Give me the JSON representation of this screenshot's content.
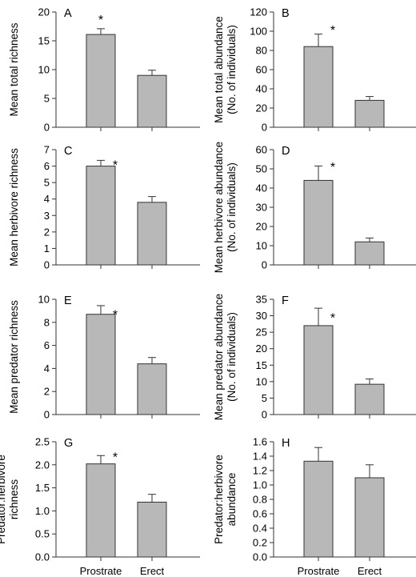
{
  "bar_color": "#b8b8b8",
  "edge_color": "#333333",
  "chart_data": [
    {
      "type": "bar",
      "panel": "A",
      "categories": [
        "Prostrate",
        "Erect"
      ],
      "values": [
        16.1,
        9.0
      ],
      "errors": [
        1.0,
        0.9
      ],
      "ylabel": [
        "Mean total richness"
      ],
      "ylim": [
        0,
        20
      ],
      "yticks": [
        0,
        5,
        10,
        15,
        20
      ],
      "significance": "*",
      "star_on": 0,
      "star_above_value": 19.3,
      "show_categories": false
    },
    {
      "type": "bar",
      "panel": "B",
      "categories": [
        "Prostrate",
        "Erect"
      ],
      "values": [
        84,
        28
      ],
      "errors": [
        13,
        4
      ],
      "ylabel": [
        "Mean total abundance",
        "(No. of individuals)"
      ],
      "ylim": [
        0,
        120
      ],
      "yticks": [
        0,
        20,
        40,
        60,
        80,
        100,
        120
      ],
      "significance": "*",
      "star_on": 1,
      "star_above_value": 105,
      "show_categories": false
    },
    {
      "type": "bar",
      "panel": "C",
      "categories": [
        "Prostrate",
        "Erect"
      ],
      "values": [
        6.0,
        3.8
      ],
      "errors": [
        0.35,
        0.35
      ],
      "ylabel": [
        "Mean herbivore richness"
      ],
      "ylim": [
        0,
        7
      ],
      "yticks": [
        0,
        1,
        2,
        3,
        4,
        5,
        6,
        7
      ],
      "significance": "*",
      "star_on": 1,
      "star_above_value": 6.3,
      "show_categories": false
    },
    {
      "type": "bar",
      "panel": "D",
      "categories": [
        "Prostrate",
        "Erect"
      ],
      "values": [
        44,
        12
      ],
      "errors": [
        7.5,
        2
      ],
      "ylabel": [
        "Mean herbivore abundance",
        "(No. of individuals)"
      ],
      "ylim": [
        0,
        60
      ],
      "yticks": [
        0,
        10,
        20,
        30,
        40,
        50,
        60
      ],
      "significance": "*",
      "star_on": 1,
      "star_above_value": 53,
      "show_categories": false
    },
    {
      "type": "bar",
      "panel": "E",
      "categories": [
        "Prostrate",
        "Erect"
      ],
      "values": [
        8.7,
        4.4
      ],
      "errors": [
        0.75,
        0.55
      ],
      "ylabel": [
        "Mean predator richness"
      ],
      "ylim": [
        0,
        10
      ],
      "yticks": [
        0,
        2,
        4,
        6,
        8,
        10
      ],
      "significance": "*",
      "star_on": 1,
      "star_above_value": 9.0,
      "show_categories": false
    },
    {
      "type": "bar",
      "panel": "F",
      "categories": [
        "Prostrate",
        "Erect"
      ],
      "values": [
        27,
        9.2
      ],
      "errors": [
        5.3,
        1.6
      ],
      "ylabel": [
        "Mean predator abundance",
        "(No. of individuals)"
      ],
      "ylim": [
        0,
        35
      ],
      "yticks": [
        0,
        5,
        10,
        15,
        20,
        25,
        30,
        35
      ],
      "significance": "*",
      "star_on": 1,
      "star_above_value": 30.5,
      "show_categories": false
    },
    {
      "type": "bar",
      "panel": "G",
      "categories": [
        "Prostrate",
        "Erect"
      ],
      "values": [
        2.02,
        1.19
      ],
      "errors": [
        0.18,
        0.17
      ],
      "ylabel": [
        "Predator:herbivore",
        "richness"
      ],
      "ylim": [
        0,
        2.5
      ],
      "yticks": [
        0.0,
        0.5,
        1.0,
        1.5,
        2.0,
        2.5
      ],
      "ytick_decimals": 1,
      "significance": "*",
      "star_on": 1,
      "star_above_value": 2.25,
      "show_categories": true
    },
    {
      "type": "bar",
      "panel": "H",
      "categories": [
        "Prostrate",
        "Erect"
      ],
      "values": [
        1.33,
        1.1
      ],
      "errors": [
        0.19,
        0.18
      ],
      "ylabel": [
        "Predator:herbivore",
        "abundance"
      ],
      "ylim": [
        0,
        1.6
      ],
      "yticks": [
        0.0,
        0.2,
        0.4,
        0.6,
        0.8,
        1.0,
        1.2,
        1.4,
        1.6
      ],
      "ytick_decimals": 1,
      "significance": "",
      "star_on": null,
      "star_above_value": null,
      "show_categories": true
    }
  ]
}
